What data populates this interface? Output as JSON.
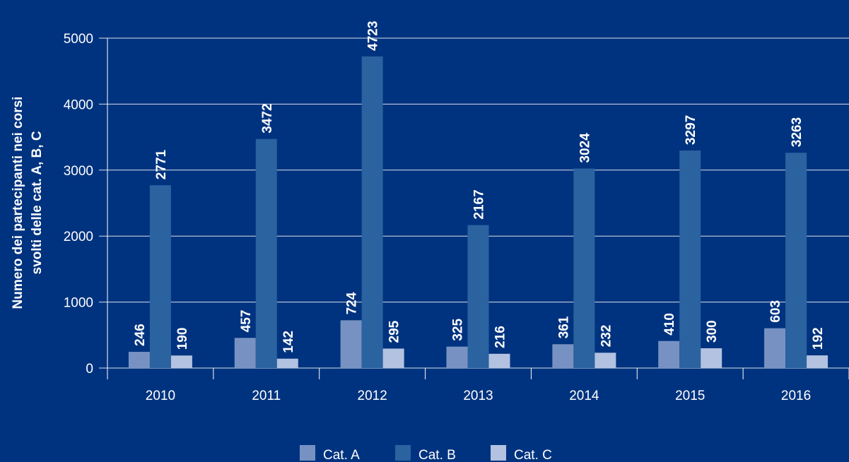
{
  "chart_data": {
    "type": "bar",
    "categories": [
      "2010",
      "2011",
      "2012",
      "2013",
      "2014",
      "2015",
      "2016"
    ],
    "series": [
      {
        "name": "Cat. A",
        "color": "#7792c2",
        "values": [
          246,
          457,
          724,
          325,
          361,
          410,
          603
        ]
      },
      {
        "name": "Cat. B",
        "color": "#2b62a0",
        "values": [
          2771,
          3472,
          4723,
          2167,
          3024,
          3297,
          3263
        ]
      },
      {
        "name": "Cat. C",
        "color": "#b2c2e0",
        "values": [
          190,
          142,
          295,
          216,
          232,
          300,
          192
        ]
      }
    ],
    "ylabel_lines": [
      "Numero dei partecipanti nei corsi",
      "svolti delle cat. A, B, C"
    ],
    "ylim": [
      0,
      5000
    ],
    "yticks": [
      0,
      1000,
      2000,
      3000,
      4000,
      5000
    ],
    "grid": true,
    "legend_position": "bottom"
  },
  "colors": {
    "background": "#00337f",
    "grid": "#ffffff",
    "text": "#ffffff"
  }
}
